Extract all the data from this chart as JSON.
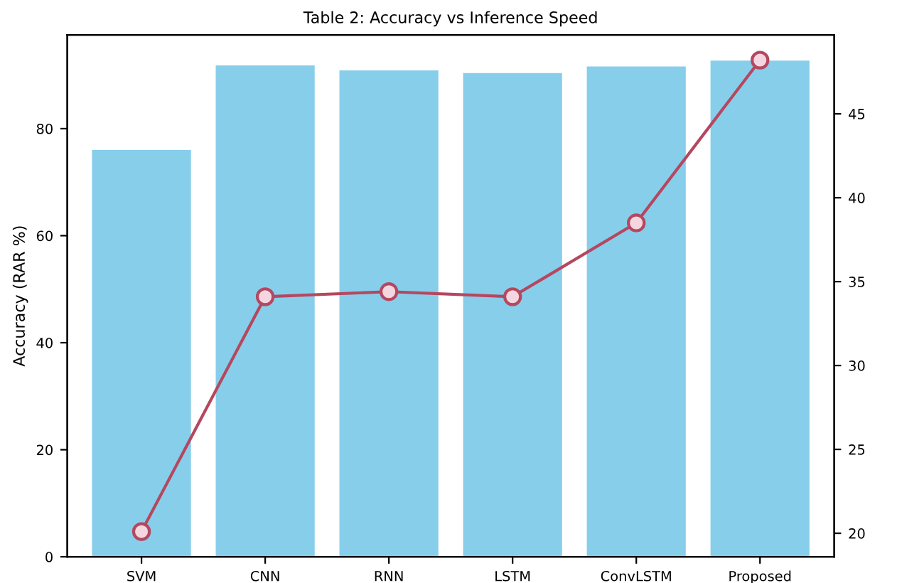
{
  "chart_data": {
    "type": "bar",
    "title": "Table 2: Accuracy vs Inference Speed",
    "ylabel": "Accuracy (RAR %)",
    "categories": [
      "SVM",
      "CNN",
      "RNN",
      "LSTM",
      "ConvLSTM",
      "Proposed"
    ],
    "series": [
      {
        "color": "#87ceeb",
        "values": [
          76.0,
          91.8,
          90.9,
          90.4,
          91.6,
          92.7
        ]
      },
      {
        "type": "line",
        "axis": "y2",
        "color": "#b5475f",
        "marker": "circle",
        "line_style": "solid",
        "values": [
          20.1,
          34.1,
          34.4,
          34.1,
          38.5,
          48.2
        ]
      }
    ],
    "ylim": [
      0,
      97.5
    ],
    "yticks": [
      0,
      20,
      40,
      60,
      80
    ],
    "y2lim": [
      18.6,
      49.7
    ],
    "y2ticks": [
      20,
      25,
      30,
      35,
      40,
      45
    ],
    "grid": false,
    "legend": false
  }
}
